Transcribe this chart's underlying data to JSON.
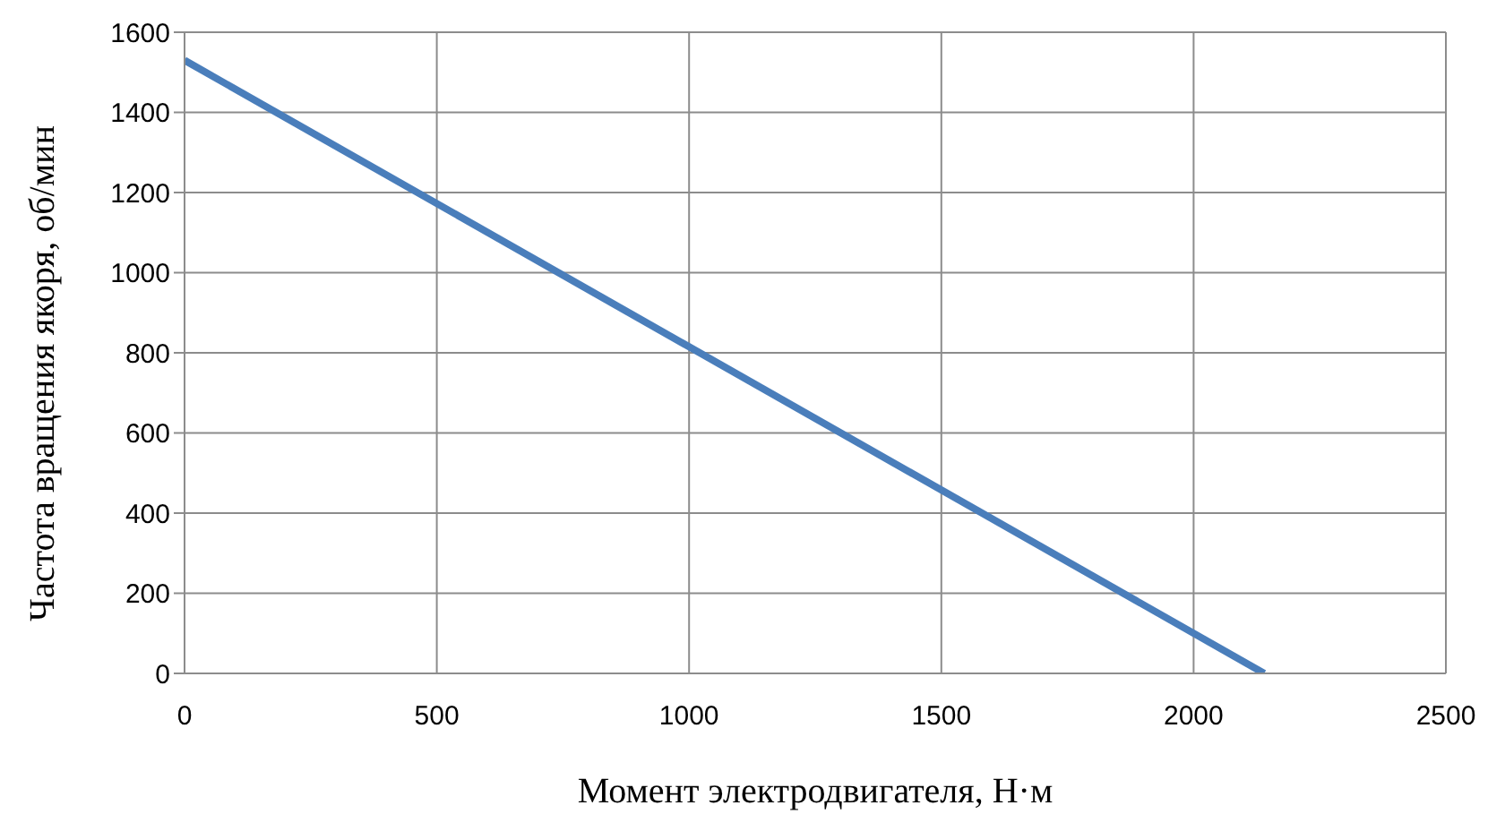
{
  "chart_data": {
    "type": "line",
    "xlabel": "Момент электродвигателя, Н·м",
    "ylabel": "Частота вращения якоря, об/мин",
    "x": [
      0,
      2140
    ],
    "series": [
      {
        "color": "#4a7ebb",
        "values": [
          1530,
          0
        ]
      }
    ],
    "xlim": [
      0,
      2500
    ],
    "xticks": [
      0,
      500,
      1000,
      1500,
      2000,
      2500
    ],
    "ylim": [
      0,
      1600
    ],
    "yticks": [
      0,
      200,
      400,
      600,
      800,
      1000,
      1200,
      1400,
      1600
    ],
    "grid": true,
    "legend": false,
    "marker": "none",
    "line_style": "solid"
  }
}
